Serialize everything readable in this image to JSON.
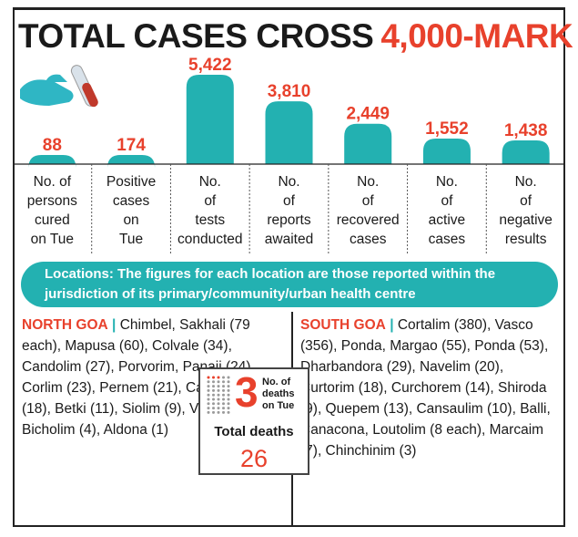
{
  "headline": {
    "part1": "TOTAL CASES CROSS",
    "part2": "4,000-MARK"
  },
  "colors": {
    "accent": "#23b1b1",
    "highlight": "#e8412c",
    "text": "#1a1a1a"
  },
  "icons": [
    "test-tube-hand-icon",
    "dot-grid-icon"
  ],
  "chart_data": {
    "type": "bar",
    "title": "TOTAL CASES CROSS 4,000-MARK",
    "categories": [
      [
        "No. of",
        "persons",
        "cured",
        "on Tue"
      ],
      [
        "Positive",
        "cases",
        "on",
        "Tue"
      ],
      [
        "No.",
        "of",
        "tests",
        "conducted"
      ],
      [
        "No.",
        "of",
        "reports",
        "awaited"
      ],
      [
        "No.",
        "of",
        "recovered",
        "cases"
      ],
      [
        "No.",
        "of",
        "active",
        "cases"
      ],
      [
        "No.",
        "of",
        "negative",
        "results"
      ]
    ],
    "values": [
      88,
      174,
      5422,
      3810,
      2449,
      1552,
      1438
    ],
    "value_labels": [
      "88",
      "174",
      "5,422",
      "3,810",
      "2,449",
      "1,552",
      "1,438"
    ],
    "bar_color": "#23b1b1",
    "label_color": "#e8412c"
  },
  "locations": {
    "text": "Locations: The figures for each location are those reported within the jurisdiction of its primary/community/urban health centre"
  },
  "north": {
    "name": "NORTH GOA",
    "sep": "|",
    "text": "Chimbel, Sakhali (79 each), Mapusa (60), Colvale (34), Candolim (27), Porvorim, Panaji (24), Corlim (23), Pernem (21), Cansarvanem (18), Betki (11), Siolim (9), Valpoi (7), Bicholim (4), Aldona (1)"
  },
  "south": {
    "name": "SOUTH GOA",
    "sep": "|",
    "text": "Cortalim (380), Vasco (356), Ponda, Margao (55), Ponda (53), Dharbandora (29), Navelim (20), Curtorim (18), Curchorem (14), Shiroda (9), Quepem (13), Cansaulim (10), Balli, Canacona, Loutolim (8 each), Marcaim (7), Chinchinim (3)"
  },
  "deaths": {
    "count": "3",
    "label": "No. of deaths on Tue",
    "total_label": "Total deaths",
    "total_value": "26"
  }
}
